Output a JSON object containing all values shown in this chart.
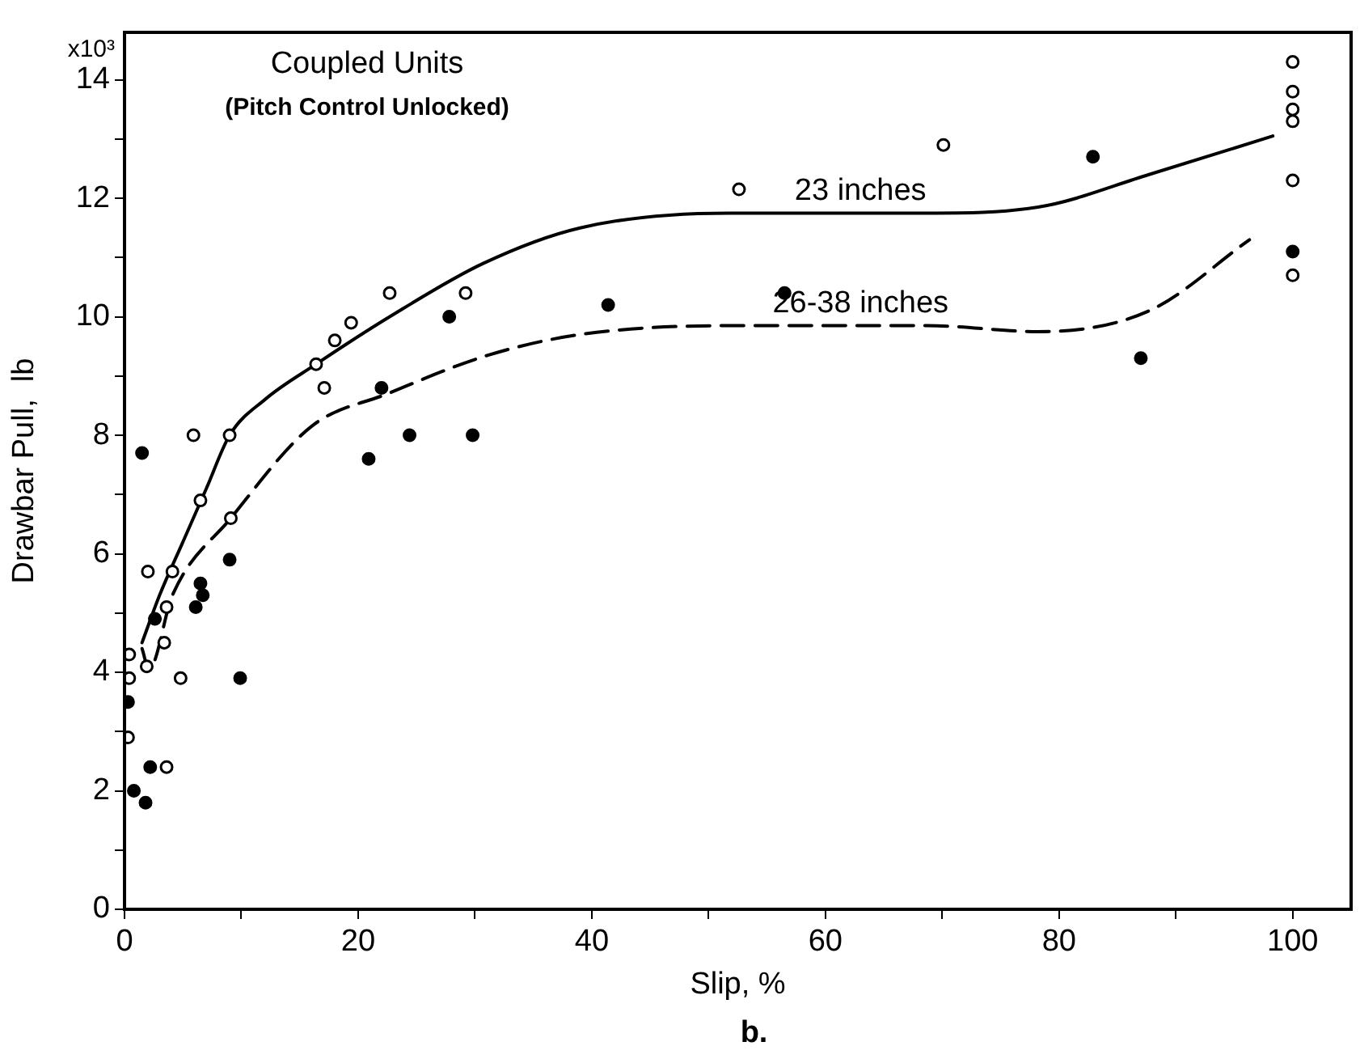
{
  "chart_data": {
    "type": "scatter",
    "title": "Coupled Units",
    "subtitle": "(Pitch Control Unlocked)",
    "xlabel": "Slip, %",
    "ylabel": "Drawbar Pull,  lb",
    "annotations": [
      "x10³",
      "b."
    ],
    "xlim": [
      0,
      105
    ],
    "ylim": [
      0,
      14.8
    ],
    "xticks": [
      0,
      {
        "value": 10,
        "label": null
      },
      20,
      {
        "value": 30,
        "label": null
      },
      40,
      {
        "value": 50,
        "label": null
      },
      60,
      {
        "value": 70,
        "label": null
      },
      80,
      {
        "value": 90,
        "label": null
      },
      100
    ],
    "yticks": [
      0,
      {
        "value": 1,
        "label": null
      },
      2,
      {
        "value": 3,
        "label": null
      },
      4,
      {
        "value": 5,
        "label": null
      },
      6,
      {
        "value": 7,
        "label": null
      },
      8,
      {
        "value": 9,
        "label": null
      },
      10,
      {
        "value": 11,
        "label": null
      },
      12,
      {
        "value": 13,
        "label": null
      },
      14
    ],
    "grid": false,
    "legend": false,
    "marker": "circle",
    "series": [
      {
        "color": "#000000",
        "x": [
          0.4,
          0.4,
          0.3,
          2.0,
          1.9,
          5.9,
          9.0,
          6.5,
          9.1,
          4.1,
          3.6,
          3.4,
          4.8,
          3.6,
          16.4,
          17.1,
          18.0,
          19.4,
          22.7,
          29.2,
          52.6,
          70.1,
          100,
          100,
          100,
          100,
          100,
          100
        ],
        "values": [
          4.3,
          3.9,
          2.9,
          5.7,
          4.1,
          8.0,
          8.0,
          6.9,
          6.6,
          5.7,
          5.1,
          4.5,
          3.9,
          2.4,
          9.2,
          8.8,
          9.6,
          9.9,
          10.4,
          10.4,
          12.15,
          12.9,
          14.3,
          13.8,
          13.5,
          13.3,
          12.3,
          10.7
        ]
      },
      {
        "color": "#000000",
        "x": [
          1.5,
          2.2,
          1.8,
          0.8,
          0.3,
          2.6,
          6.1,
          6.5,
          6.7,
          9.0,
          9.9,
          20.9,
          22.0,
          24.4,
          29.8,
          27.8,
          41.4,
          56.5,
          82.9,
          87.0,
          100
        ],
        "values": [
          7.7,
          2.4,
          1.8,
          2.0,
          3.5,
          4.9,
          5.1,
          5.5,
          5.3,
          5.9,
          3.9,
          7.6,
          8.8,
          8.0,
          8.0,
          10.0,
          10.2,
          10.4,
          12.7,
          9.3,
          11.1
        ]
      },
      {
        "type": "line",
        "name": "23 inches",
        "color": "#000000",
        "line_style": "solid",
        "marker": "none",
        "x": [
          1.5,
          3,
          5,
          7,
          9,
          12,
          16.4,
          22.7,
          30.7,
          39,
          51.7,
          68.7,
          78.2,
          87.7,
          98.3
        ],
        "values": [
          4.5,
          5.3,
          6.2,
          7.1,
          8.0,
          8.6,
          9.2,
          10.0,
          10.9,
          11.5,
          11.75,
          11.75,
          11.85,
          12.4,
          13.05
        ]
      },
      {
        "type": "line",
        "name": "26-38 inches",
        "color": "#000000",
        "line_style": "dashed",
        "marker": "none",
        "x": [
          1.5,
          2.1,
          4.1,
          9.1,
          16,
          22.5,
          31.1,
          39,
          51.7,
          68.7,
          78.2,
          87.7,
          96.3
        ],
        "values": [
          4.4,
          4.05,
          5.3,
          6.6,
          8.15,
          8.7,
          9.35,
          9.7,
          9.85,
          9.85,
          9.75,
          10.1,
          11.3
        ]
      }
    ]
  }
}
